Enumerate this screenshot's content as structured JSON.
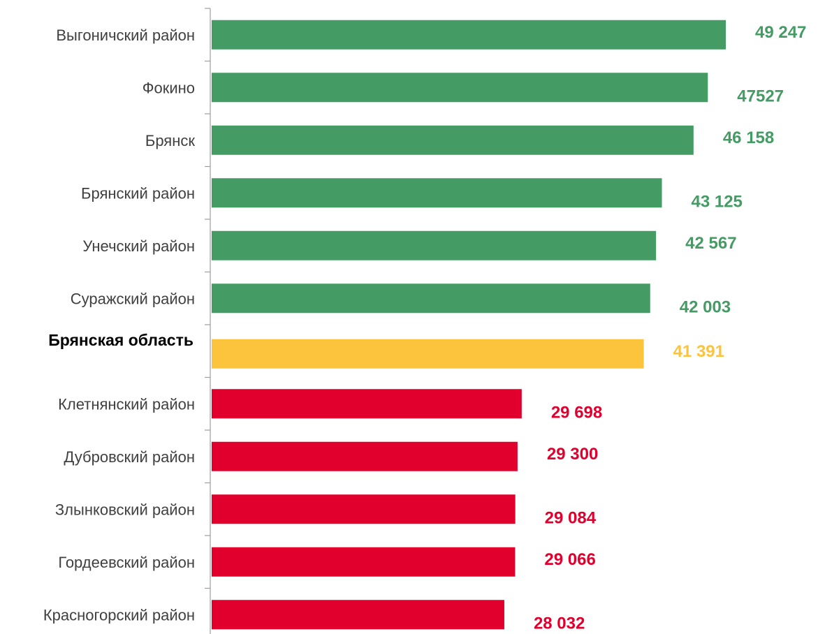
{
  "colors": {
    "above": "#449b64",
    "region": "#fcc33d",
    "below": "#e1002d",
    "axis": "#9e9e9e"
  },
  "chart_data": {
    "type": "bar",
    "orientation": "horizontal",
    "title": "",
    "xlabel": "",
    "ylabel": "",
    "xlim": [
      0,
      50000
    ],
    "grid": false,
    "legend": "none",
    "categories": [
      "Выгоничский район",
      "Фокино",
      "Брянск",
      "Брянский район",
      "Унечский район",
      "Суражский район",
      "Брянская область",
      "Клетнянский район",
      "Дубровский район",
      "Злынковский район",
      "Гордеевский район",
      "Красногорский район"
    ],
    "values": [
      49247,
      47527,
      46158,
      43125,
      42567,
      42003,
      41391,
      29698,
      29300,
      29084,
      29066,
      28032
    ],
    "value_labels": [
      "49 247",
      "47527",
      "46 158",
      "43 125",
      "42 567",
      "42 003",
      "41 391",
      "29 698",
      "29 300",
      "29 084",
      "29 066",
      "28 032"
    ],
    "bar_groups": [
      "above",
      "above",
      "above",
      "above",
      "above",
      "above",
      "region",
      "below",
      "below",
      "below",
      "below",
      "below"
    ],
    "highlighted_category": "Брянская область"
  }
}
